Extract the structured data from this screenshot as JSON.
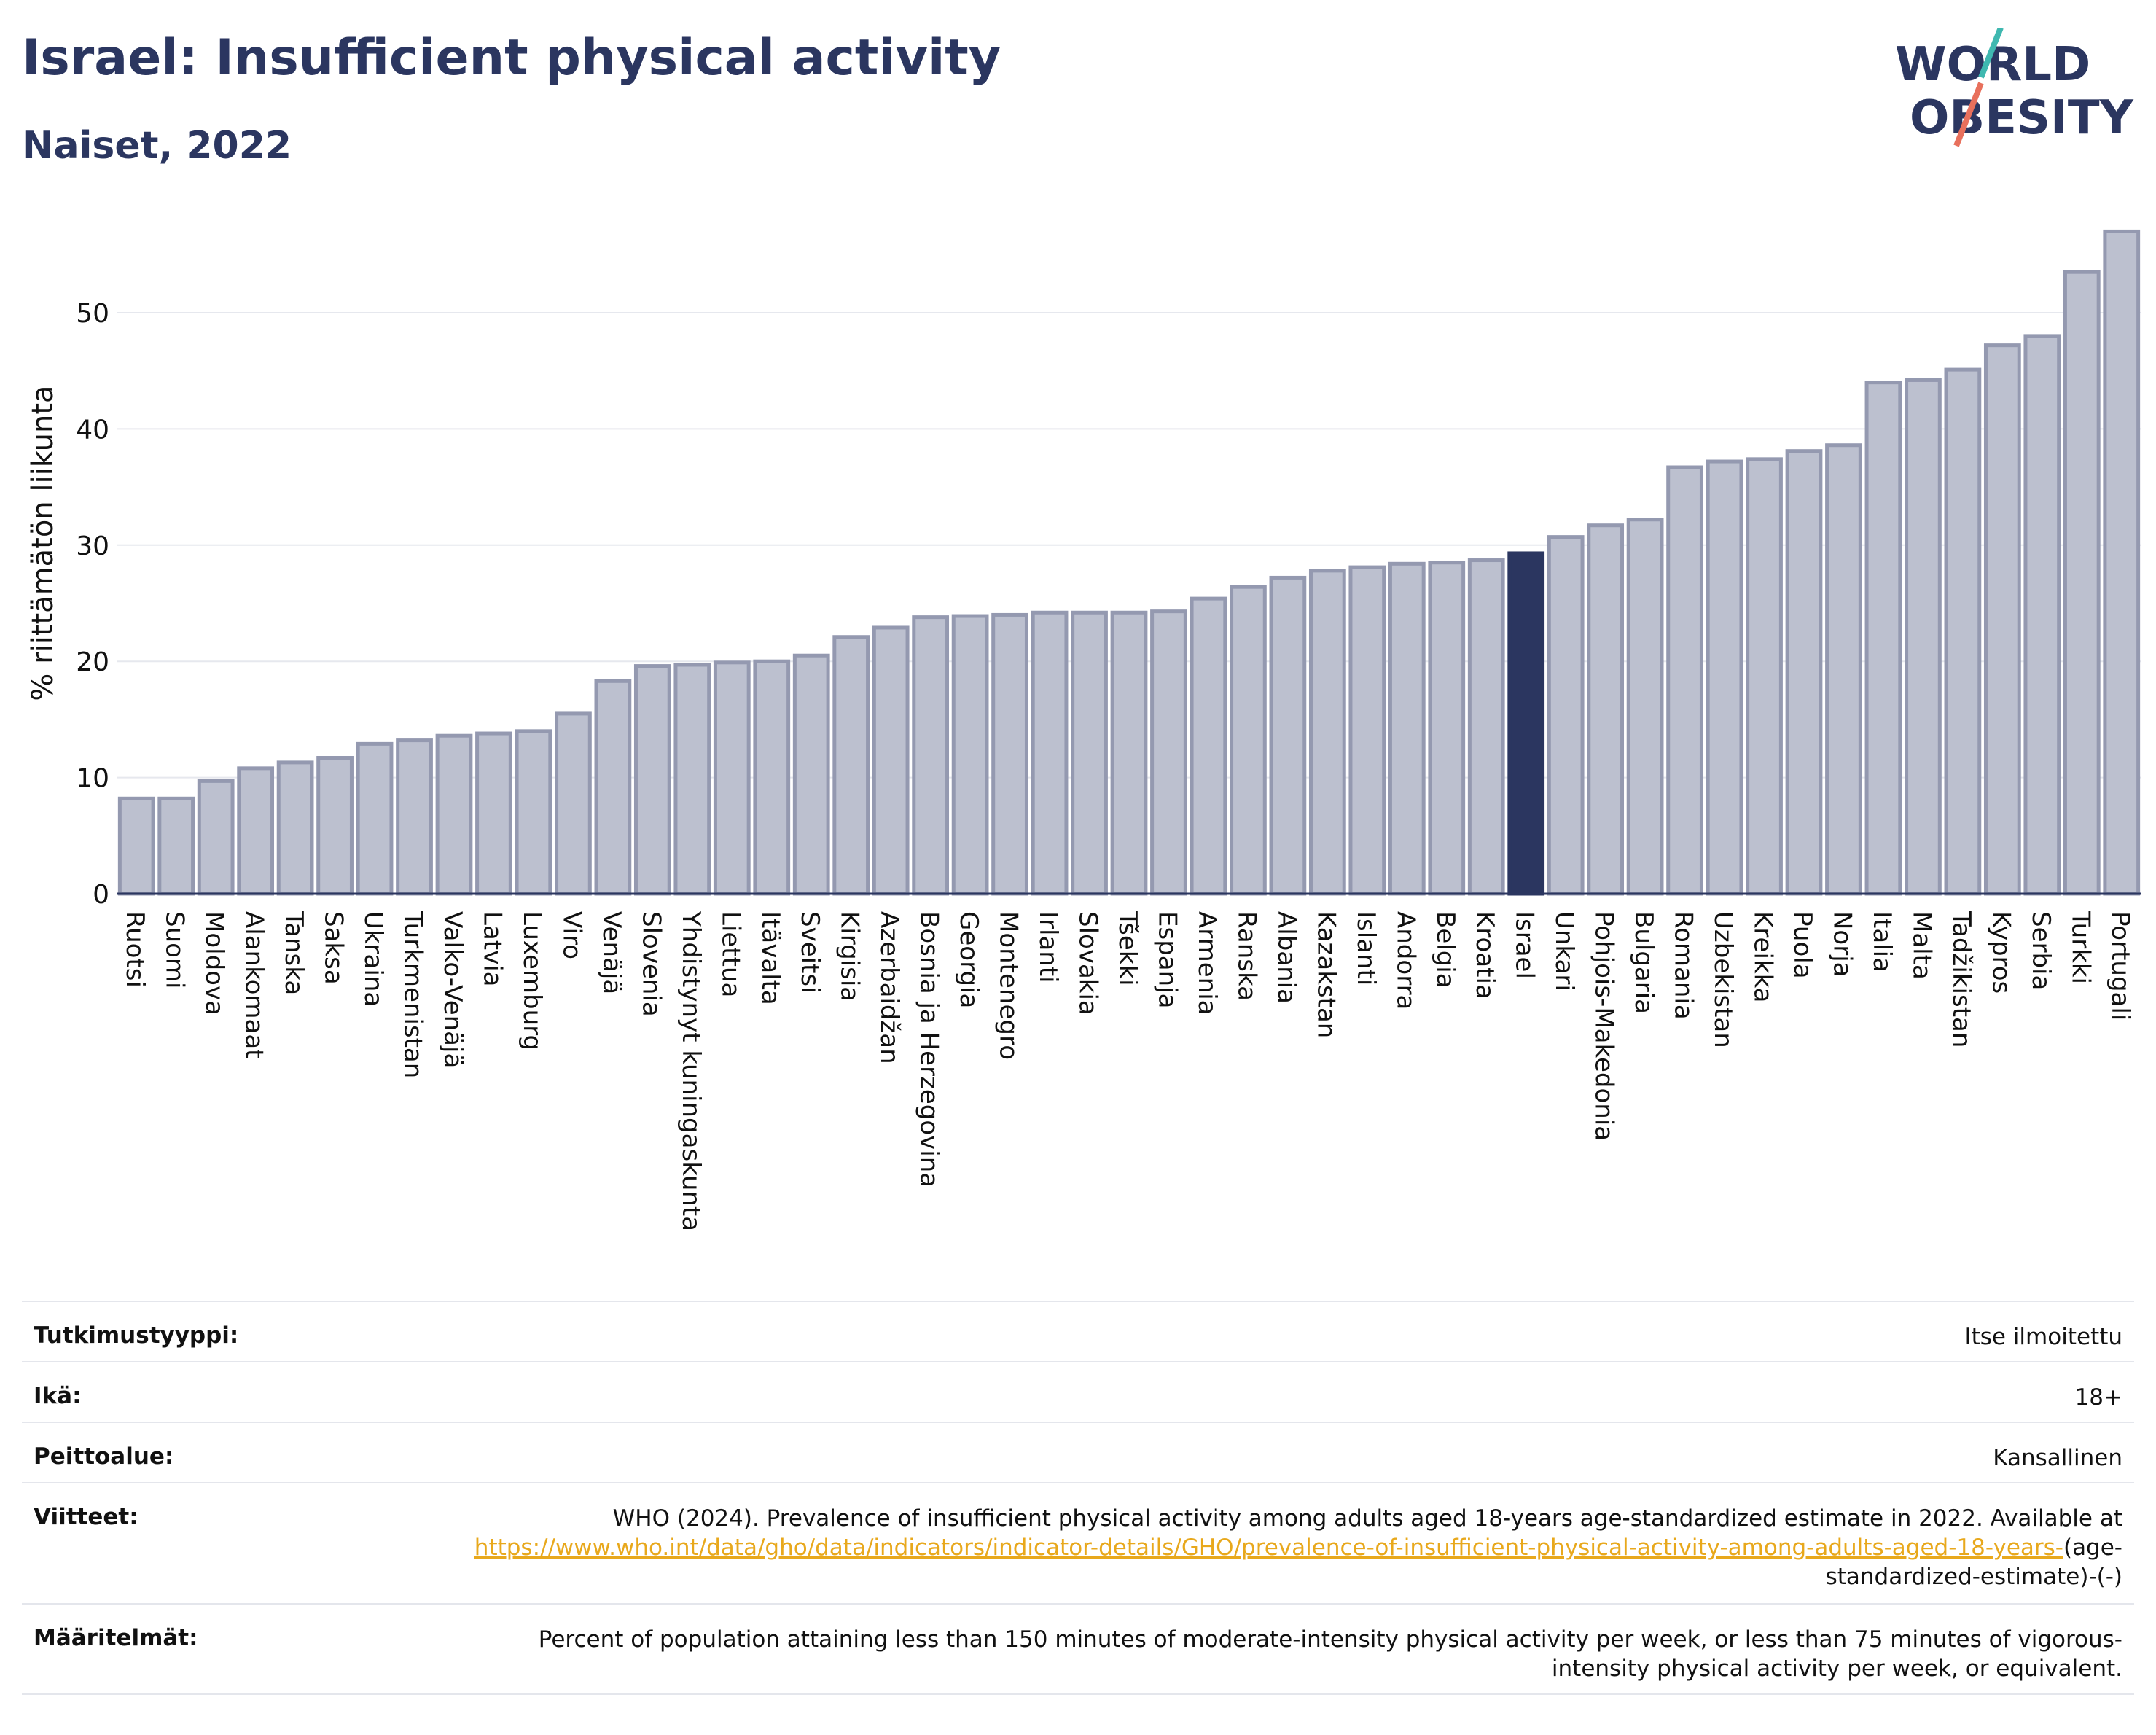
{
  "header": {
    "title": "Israel: Insufficient physical activity",
    "subtitle": "Naiset, 2022"
  },
  "logo": {
    "line1": "WORLD",
    "line2": "OBESITY"
  },
  "colors": {
    "bar": "#bcc0cf",
    "bar_border": "#9499b0",
    "highlight": "#2b3660",
    "text": "#2b3660",
    "link": "#e8a81c",
    "logo_teal": "#3fb8b0",
    "logo_red": "#e8705c"
  },
  "chart_data": {
    "type": "bar",
    "ylabel": "% riittämätön liikunta",
    "ylim": [
      0,
      57
    ],
    "yticks": [
      0,
      10,
      20,
      30,
      40,
      50
    ],
    "grid": true,
    "highlight": "Israel",
    "categories": [
      "Ruotsi",
      "Suomi",
      "Moldova",
      "Alankomaat",
      "Tanska",
      "Saksa",
      "Ukraina",
      "Turkmenistan",
      "Valko-Venäjä",
      "Latvia",
      "Luxemburg",
      "Viro",
      "Venäjä",
      "Slovenia",
      "Yhdistynyt kuningaskunta",
      "Liettua",
      "Itävalta",
      "Sveitsi",
      "Kirgisia",
      "Azerbaidžan",
      "Bosnia ja Herzegovina",
      "Georgia",
      "Montenegro",
      "Irlanti",
      "Slovakia",
      "Tšekki",
      "Espanja",
      "Armenia",
      "Ranska",
      "Albania",
      "Kazakstan",
      "Islanti",
      "Andorra",
      "Belgia",
      "Kroatia",
      "Israel",
      "Unkari",
      "Pohjois-Makedonia",
      "Bulgaria",
      "Romania",
      "Uzbekistan",
      "Kreikka",
      "Puola",
      "Norja",
      "Italia",
      "Malta",
      "Tadžikistan",
      "Kypros",
      "Serbia",
      "Turkki",
      "Portugali"
    ],
    "values": [
      8.2,
      8.2,
      9.7,
      10.8,
      11.3,
      11.7,
      12.9,
      13.2,
      13.6,
      13.8,
      14.0,
      15.5,
      18.3,
      19.6,
      19.7,
      19.9,
      20.0,
      20.5,
      22.1,
      22.9,
      23.8,
      23.9,
      24.0,
      24.2,
      24.2,
      24.2,
      24.3,
      25.4,
      26.4,
      27.2,
      27.8,
      28.1,
      28.4,
      28.5,
      28.7,
      29.3,
      30.7,
      31.7,
      32.2,
      36.7,
      37.2,
      37.4,
      38.1,
      38.6,
      44.0,
      44.2,
      45.1,
      47.2,
      48.0,
      53.5,
      57.0
    ]
  },
  "meta": {
    "rows": [
      {
        "label": "Tutkimustyyppi:",
        "value": "Itse ilmoitettu"
      },
      {
        "label": "Ikä:",
        "value": "18+"
      },
      {
        "label": "Peittoalue:",
        "value": "Kansallinen"
      }
    ],
    "references": {
      "label": "Viitteet:",
      "text": "WHO (2024). Prevalence of insufficient physical activity among adults aged 18-years age-standardized estimate in 2022. Available at",
      "link": "https://www.who.int/data/gho/data/indicators/indicator-details/GHO/prevalence-of-insufficient-physical-activity-among-adults-aged-18-years-",
      "suffix": "(age-standardized-estimate)-(-)"
    },
    "definitions": {
      "label": "Määritelmät:",
      "text": "Percent of population attaining less than 150 minutes of moderate-intensity physical activity per week, or less than 75 minutes of vigorous-intensity physical activity per week, or equivalent."
    }
  }
}
